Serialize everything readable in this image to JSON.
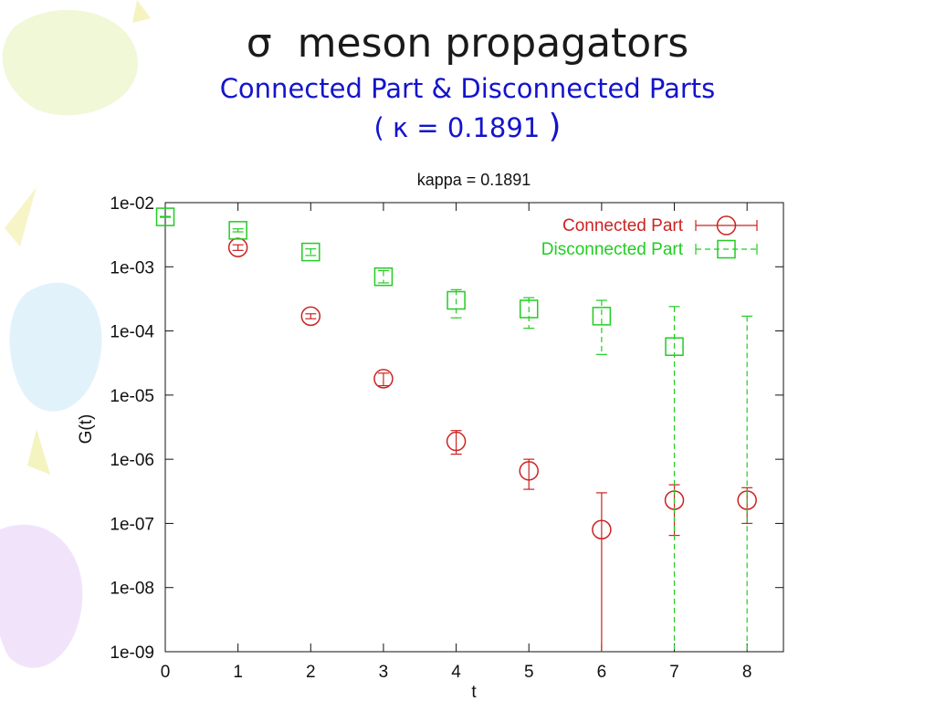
{
  "slide": {
    "title_symbol": "σ",
    "title_text": "meson propagators",
    "subtitle": "Connected Part & Disconnected Parts",
    "kappa_open": "(",
    "kappa_symbol": "κ",
    "kappa_eq": "= 0.1891",
    "kappa_close": ")"
  },
  "chart_data": {
    "type": "scatter",
    "title": "kappa = 0.1891",
    "xlabel": "t",
    "ylabel": "G(t)",
    "xlim": [
      0,
      8.5
    ],
    "ylim": [
      1e-09,
      0.01
    ],
    "yscale": "log",
    "grid": false,
    "legend_position": "top-right",
    "x_ticks": [
      "0",
      "1",
      "2",
      "3",
      "4",
      "5",
      "6",
      "7",
      "8"
    ],
    "y_ticks": [
      "1e-02",
      "1e-03",
      "1e-04",
      "1e-05",
      "1e-06",
      "1e-07",
      "1e-08",
      "1e-09"
    ],
    "series": [
      {
        "name": "Connected Part",
        "color": "#cc2222",
        "marker": "circle",
        "line": "solid",
        "points": [
          {
            "x": 1,
            "y": 0.002,
            "lo": 0.0018,
            "hi": 0.0022
          },
          {
            "x": 2,
            "y": 0.00017,
            "lo": 0.000155,
            "hi": 0.000185
          },
          {
            "x": 3,
            "y": 1.8e-05,
            "lo": 1.4e-05,
            "hi": 2.2e-05
          },
          {
            "x": 4,
            "y": 1.9e-06,
            "lo": 1.2e-06,
            "hi": 2.8e-06
          },
          {
            "x": 5,
            "y": 6.6e-07,
            "lo": 3.4e-07,
            "hi": 1e-06
          },
          {
            "x": 6,
            "y": 8e-08,
            "lo": 1e-09,
            "hi": 3e-07
          },
          {
            "x": 7,
            "y": 2.3e-07,
            "lo": 6.5e-08,
            "hi": 4e-07
          },
          {
            "x": 8,
            "y": 2.3e-07,
            "lo": 1e-07,
            "hi": 3.6e-07
          }
        ]
      },
      {
        "name": "Disconnected Part",
        "color": "#22cc22",
        "marker": "square",
        "line": "dashed",
        "points": [
          {
            "x": 0,
            "y": 0.006,
            "lo": 0.0059,
            "hi": 0.0061
          },
          {
            "x": 1,
            "y": 0.0037,
            "lo": 0.0035,
            "hi": 0.0039
          },
          {
            "x": 2,
            "y": 0.0017,
            "lo": 0.0015,
            "hi": 0.0019
          },
          {
            "x": 3,
            "y": 0.0007,
            "lo": 0.00056,
            "hi": 0.00087
          },
          {
            "x": 4,
            "y": 0.0003,
            "lo": 0.00016,
            "hi": 0.00044
          },
          {
            "x": 5,
            "y": 0.00022,
            "lo": 0.00011,
            "hi": 0.00033
          },
          {
            "x": 6,
            "y": 0.00017,
            "lo": 4.3e-05,
            "hi": 0.0003
          },
          {
            "x": 7,
            "y": 5.7e-05,
            "lo": 1e-09,
            "hi": 0.00024
          },
          {
            "x": 8,
            "y": 1e-09,
            "lo": 1e-09,
            "hi": 0.00017
          }
        ]
      }
    ]
  }
}
